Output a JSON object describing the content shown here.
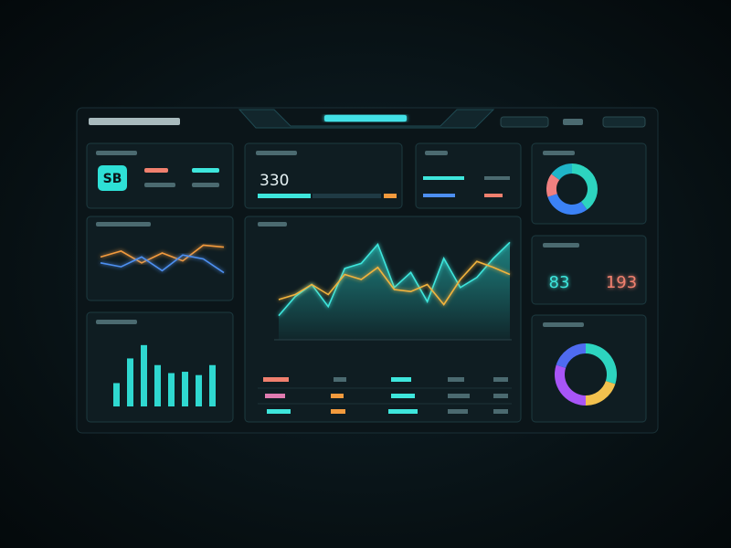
{
  "kpis": {
    "status": "SB",
    "total": "330",
    "left_value": "83",
    "right_value": "193"
  },
  "main_chart": {
    "ylim": [
      0,
      100
    ],
    "series": [
      {
        "color": "#3ee6dc",
        "values": [
          24,
          43,
          55,
          33,
          71,
          76,
          95,
          52,
          67,
          38,
          81,
          52,
          62,
          81,
          97
        ]
      },
      {
        "color": "#f2b33d",
        "values": [
          40,
          45,
          55,
          45,
          65,
          60,
          72,
          50,
          48,
          55,
          35,
          60,
          78,
          72,
          65
        ]
      }
    ]
  },
  "mini_chart": {
    "ylim": [
      0,
      100
    ],
    "series": [
      {
        "color": "#f29a3d",
        "values": [
          55,
          70,
          40,
          65,
          45,
          85,
          80
        ]
      },
      {
        "color": "#4d8ff0",
        "values": [
          40,
          30,
          55,
          20,
          60,
          50,
          15
        ]
      }
    ]
  },
  "bar_chart": {
    "ylim": [
      0,
      100
    ],
    "color": "#2fd8d0",
    "values": [
      35,
      72,
      92,
      62,
      50,
      52,
      47,
      62
    ]
  },
  "donut_top": {
    "values": [
      40,
      30,
      15,
      15
    ],
    "colors": [
      "#2dd4bf",
      "#3b82f6",
      "#f08080",
      "#1fb5c9"
    ]
  },
  "donut_bottom": {
    "values": [
      30,
      20,
      30,
      20
    ],
    "colors": [
      "#2dd4bf",
      "#f2c14e",
      "#a855f7",
      "#4f6bf0"
    ]
  }
}
